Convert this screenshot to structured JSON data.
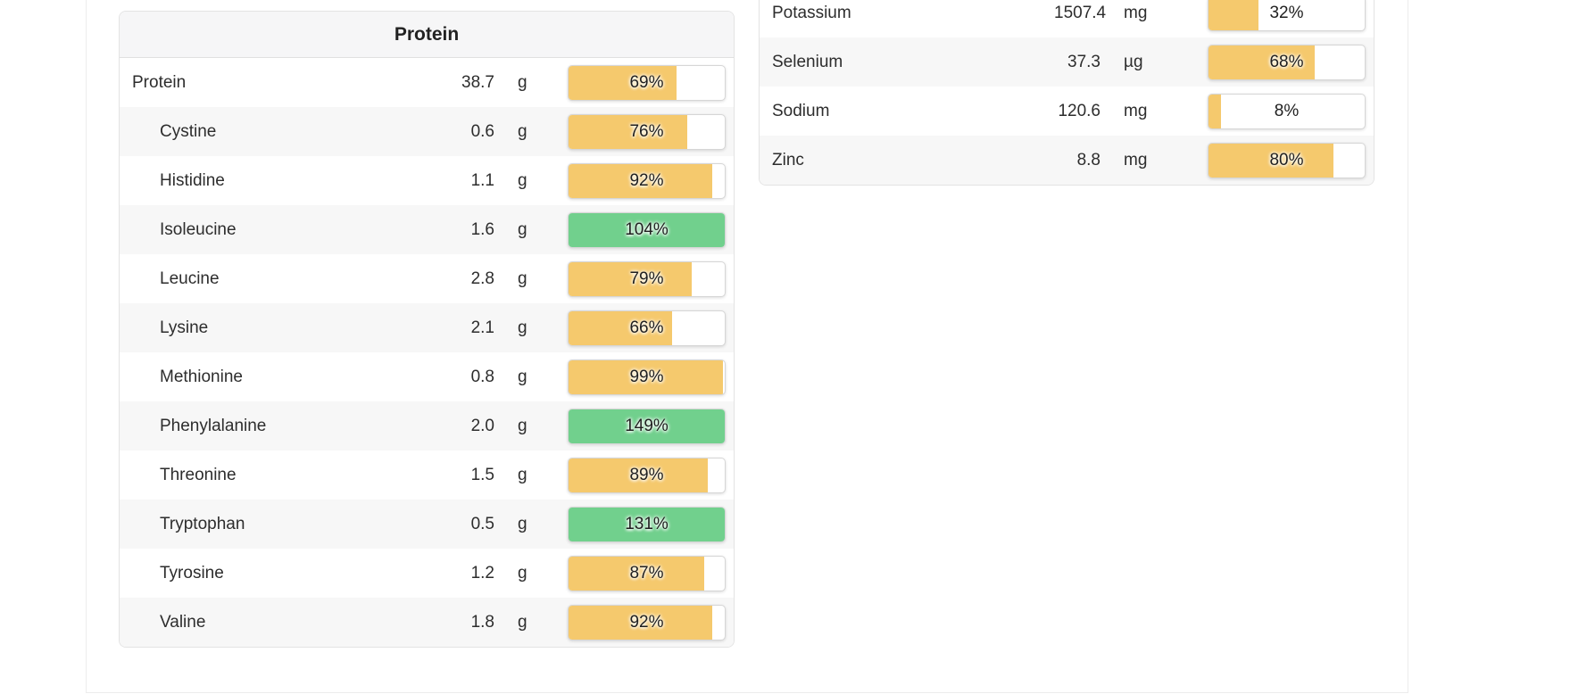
{
  "colors": {
    "amber_fill": "#f5c96d",
    "green_fill": "#71d08d",
    "stripe": "#f7f7f7",
    "panel_border": "#e3e3e3"
  },
  "panels": {
    "protein": {
      "title": "Protein",
      "rows": [
        {
          "label": "Protein",
          "indent": false,
          "value": "38.7",
          "unit": "g",
          "percent": "69%",
          "fill": 69,
          "status": "partial"
        },
        {
          "label": "Cystine",
          "indent": true,
          "value": "0.6",
          "unit": "g",
          "percent": "76%",
          "fill": 76,
          "status": "partial"
        },
        {
          "label": "Histidine",
          "indent": true,
          "value": "1.1",
          "unit": "g",
          "percent": "92%",
          "fill": 92,
          "status": "partial"
        },
        {
          "label": "Isoleucine",
          "indent": true,
          "value": "1.6",
          "unit": "g",
          "percent": "104%",
          "fill": 100,
          "status": "complete"
        },
        {
          "label": "Leucine",
          "indent": true,
          "value": "2.8",
          "unit": "g",
          "percent": "79%",
          "fill": 79,
          "status": "partial"
        },
        {
          "label": "Lysine",
          "indent": true,
          "value": "2.1",
          "unit": "g",
          "percent": "66%",
          "fill": 66,
          "status": "partial"
        },
        {
          "label": "Methionine",
          "indent": true,
          "value": "0.8",
          "unit": "g",
          "percent": "99%",
          "fill": 99,
          "status": "partial"
        },
        {
          "label": "Phenylalanine",
          "indent": true,
          "value": "2.0",
          "unit": "g",
          "percent": "149%",
          "fill": 100,
          "status": "complete"
        },
        {
          "label": "Threonine",
          "indent": true,
          "value": "1.5",
          "unit": "g",
          "percent": "89%",
          "fill": 89,
          "status": "partial"
        },
        {
          "label": "Tryptophan",
          "indent": true,
          "value": "0.5",
          "unit": "g",
          "percent": "131%",
          "fill": 100,
          "status": "complete"
        },
        {
          "label": "Tyrosine",
          "indent": true,
          "value": "1.2",
          "unit": "g",
          "percent": "87%",
          "fill": 87,
          "status": "partial"
        },
        {
          "label": "Valine",
          "indent": true,
          "value": "1.8",
          "unit": "g",
          "percent": "92%",
          "fill": 92,
          "status": "partial"
        }
      ]
    },
    "minerals": {
      "rows": [
        {
          "label": "Potassium",
          "indent": false,
          "value": "1507.4",
          "unit": "mg",
          "percent": "32%",
          "fill": 32,
          "status": "partial"
        },
        {
          "label": "Selenium",
          "indent": false,
          "value": "37.3",
          "unit": "µg",
          "percent": "68%",
          "fill": 68,
          "status": "partial"
        },
        {
          "label": "Sodium",
          "indent": false,
          "value": "120.6",
          "unit": "mg",
          "percent": "8%",
          "fill": 8,
          "status": "partial"
        },
        {
          "label": "Zinc",
          "indent": false,
          "value": "8.8",
          "unit": "mg",
          "percent": "80%",
          "fill": 80,
          "status": "partial"
        }
      ]
    }
  }
}
